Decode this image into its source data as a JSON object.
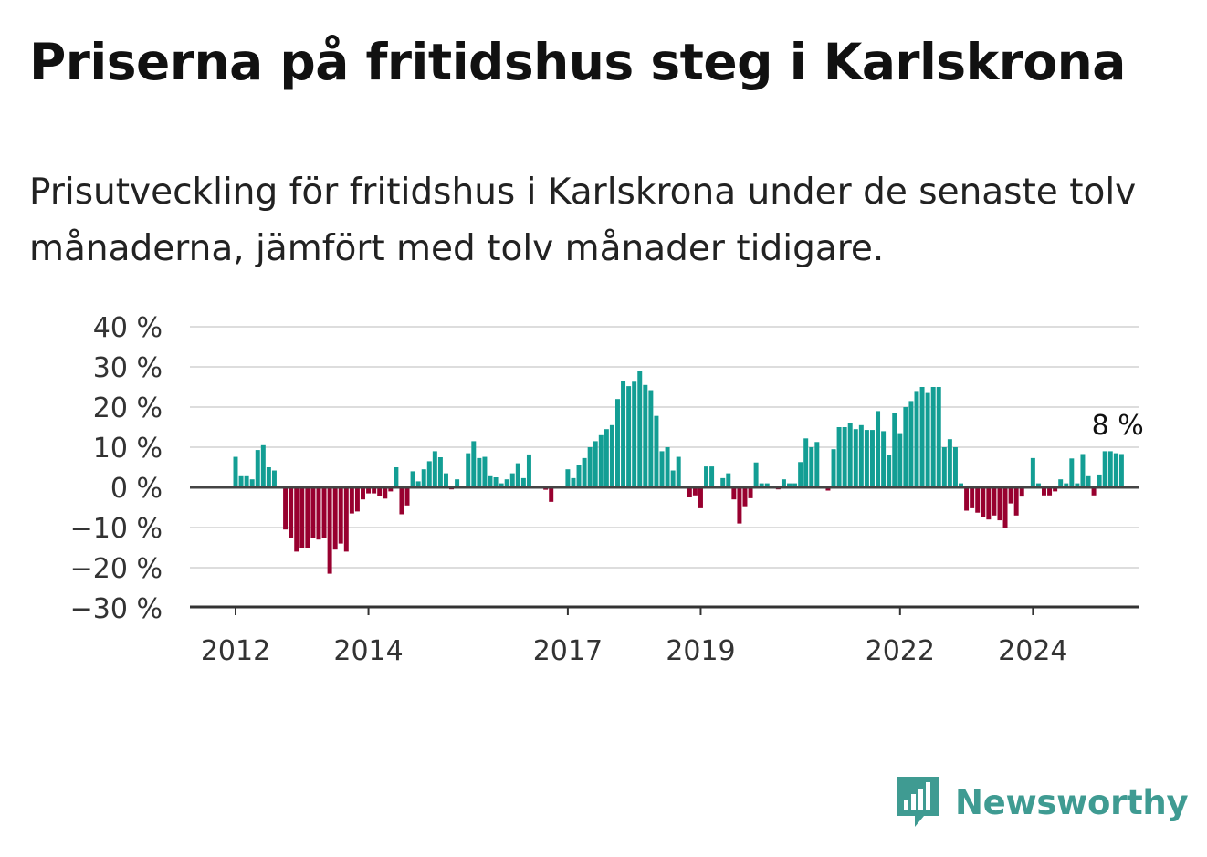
{
  "title": "Priserna på fritidshus steg i Karlskrona",
  "subtitle": "Prisutveckling för fritidshus i Karlskrona under de senaste tolv månaderna, jämfört med tolv månader tidigare.",
  "brand": {
    "name": "Newsworthy",
    "icon": "newsworthy-logo-icon"
  },
  "colors": {
    "positive": "#139e94",
    "negative": "#98002f",
    "zero_line": "#444444",
    "grid": "#dddddd"
  },
  "chart_data": {
    "type": "bar",
    "start": "2012-01",
    "frequency": "monthly",
    "ylim": [
      -30,
      40
    ],
    "yticks": [
      -30,
      -20,
      -10,
      0,
      10,
      20,
      30,
      40
    ],
    "ytick_labels": [
      "−30 %",
      "−20 %",
      "−10 %",
      "0 %",
      "10 %",
      "20 %",
      "30 %",
      "40 %"
    ],
    "xticks": [
      "2012",
      "2014",
      "2017",
      "2019",
      "2022",
      "2024"
    ],
    "annotation": {
      "text": "8 %",
      "value": 8
    },
    "values": [
      7.6,
      3,
      3,
      2,
      9.3,
      10.5,
      5,
      4.2,
      0,
      -10.5,
      -12.6,
      -16,
      -15,
      -15,
      -12.6,
      -13,
      -12.5,
      -21.5,
      -15.5,
      -14,
      -16,
      -6.5,
      -6,
      -3,
      -1.5,
      -1.5,
      -2.2,
      -2.8,
      -1,
      5,
      -6.7,
      -4.5,
      4,
      1.5,
      4.5,
      6.5,
      9,
      7.5,
      3.5,
      -0.5,
      2,
      0,
      8.5,
      11.5,
      7.3,
      7.6,
      3,
      2.5,
      1,
      2,
      3.5,
      6,
      2.3,
      8.2,
      0,
      0,
      -0.6,
      -3.6,
      0,
      0,
      4.5,
      2.3,
      5.5,
      7.3,
      10,
      11.5,
      13,
      14.5,
      15.5,
      22,
      26.5,
      25.2,
      26.3,
      29,
      25.5,
      24.2,
      17.8,
      9,
      10,
      4.2,
      7.6,
      0,
      -2.5,
      -2,
      -5.2,
      5.2,
      5.2,
      0,
      2.3,
      3.5,
      -3,
      -9,
      -4.7,
      -2.7,
      6.2,
      1,
      1,
      0,
      -0.5,
      2,
      1,
      1,
      6.3,
      12.2,
      10,
      11.3,
      0,
      -0.8,
      9.5,
      15,
      15,
      16,
      14.5,
      15.5,
      14.3,
      14.3,
      19,
      14,
      8,
      18.5,
      13.5,
      20,
      21.5,
      24,
      25,
      23.5,
      25,
      25,
      10,
      12,
      10,
      1,
      -5.8,
      -5.2,
      -6.3,
      -7.3,
      -8,
      -7,
      -8.2,
      -10,
      -4,
      -7,
      -2.3,
      0,
      7.3,
      1,
      -2,
      -2,
      -1,
      2,
      1,
      7.2,
      1,
      8.3,
      3,
      -2,
      3.2,
      9,
      9,
      8.5,
      8.3
    ]
  }
}
